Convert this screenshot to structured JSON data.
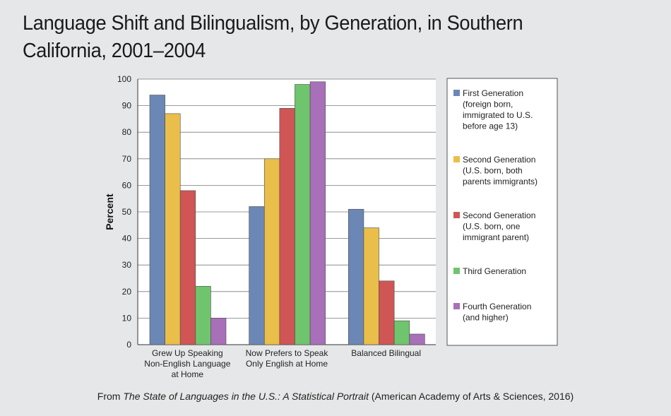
{
  "chart_data": {
    "type": "bar",
    "title": "Language Shift and Bilingualism, by Generation, in Southern California, 2001–2004",
    "ylabel": "Percent",
    "xlabel": "",
    "ylim": [
      0,
      100
    ],
    "yticks": [
      0,
      10,
      20,
      30,
      40,
      50,
      60,
      70,
      80,
      90,
      100
    ],
    "grid": true,
    "legend_position": "right",
    "categories": [
      [
        "Grew Up Speaking",
        "Non-English Language",
        "at Home"
      ],
      [
        "Now Prefers to Speak",
        "Only English at Home"
      ],
      [
        "Balanced Bilingual"
      ]
    ],
    "series": [
      {
        "name": [
          "First Generation",
          "(foreign born,",
          "immigrated to U.S.",
          "before age 13)"
        ],
        "color": "#6b87b5",
        "values": [
          94,
          52,
          51
        ]
      },
      {
        "name": [
          "Second Generation",
          "(U.S. born, both",
          "parents immigrants)"
        ],
        "color": "#eabe4a",
        "values": [
          87,
          70,
          44
        ]
      },
      {
        "name": [
          "Second Generation",
          "(U.S. born, one",
          "immigrant parent)"
        ],
        "color": "#cf5655",
        "values": [
          58,
          89,
          24
        ]
      },
      {
        "name": [
          "Third Generation"
        ],
        "color": "#6fc56d",
        "values": [
          22,
          98,
          9
        ]
      },
      {
        "name": [
          "Fourth Generation",
          "(and higher)"
        ],
        "color": "#a870b8",
        "values": [
          10,
          99,
          4
        ]
      }
    ]
  },
  "source": {
    "prefix": "From ",
    "work": "The State of Languages in the U.S.: A Statistical Portrait",
    "suffix": " (American Academy of Arts & Sciences, 2016)"
  }
}
